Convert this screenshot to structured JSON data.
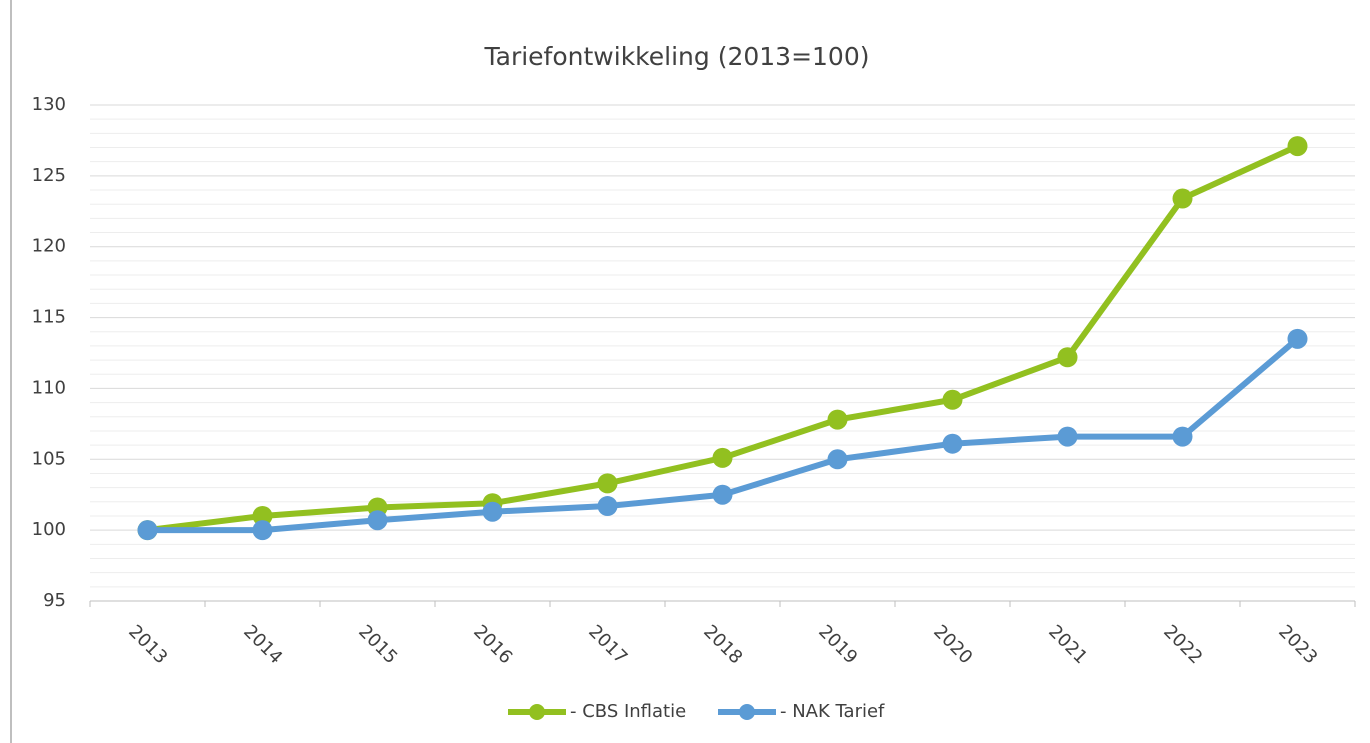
{
  "chart_data": {
    "type": "line",
    "title": "Tariefontwikkeling (2013=100)",
    "categories": [
      "2013",
      "2014",
      "2015",
      "2016",
      "2017",
      "2018",
      "2019",
      "2020",
      "2021",
      "2022",
      "2023"
    ],
    "series": [
      {
        "name": "- CBS Inflatie",
        "color": "#92c020",
        "values": [
          100,
          101.0,
          101.6,
          101.9,
          103.3,
          105.1,
          107.8,
          109.2,
          112.2,
          123.4,
          127.1
        ]
      },
      {
        "name": "- NAK Tarief",
        "color": "#5b9bd5",
        "values": [
          100,
          100,
          100.7,
          101.3,
          101.7,
          102.5,
          105.0,
          106.1,
          106.6,
          106.6,
          113.5
        ]
      }
    ],
    "ylim": [
      95,
      130
    ],
    "yticks": [
      95,
      100,
      105,
      110,
      115,
      120,
      125,
      130
    ],
    "yticks_minor": [
      96,
      97,
      98,
      99,
      101,
      102,
      103,
      104,
      106,
      107,
      108,
      109,
      111,
      112,
      113,
      114,
      116,
      117,
      118,
      119,
      121,
      122,
      123,
      124,
      126,
      127,
      128,
      129
    ],
    "grid": true,
    "legend": "bottom"
  }
}
